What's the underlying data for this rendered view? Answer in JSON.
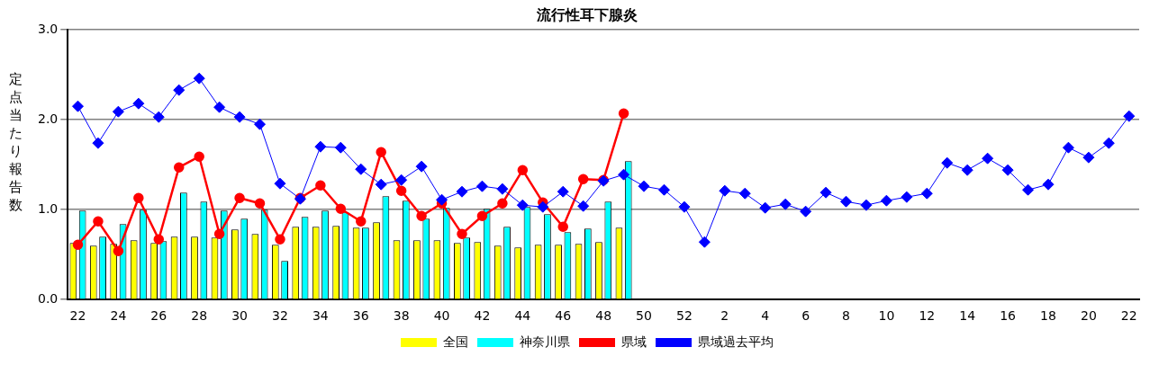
{
  "chart_data": {
    "type": "bar",
    "title": "流行性耳下腺炎",
    "ylabel": "定点当たり報告数",
    "categories": [
      "22",
      null,
      "24",
      null,
      "26",
      null,
      "28",
      null,
      "30",
      null,
      "32",
      null,
      "34",
      null,
      "36",
      null,
      "38",
      null,
      "40",
      null,
      "42",
      null,
      "44",
      null,
      "46",
      null,
      "48",
      null,
      "50",
      null,
      "52",
      null,
      "2",
      null,
      "4",
      null,
      "6",
      null,
      "8",
      null,
      "10",
      null,
      "12",
      null,
      "14",
      null,
      "16",
      null,
      "18",
      null,
      "20",
      null,
      "22"
    ],
    "series": [
      {
        "name": "全国",
        "color": "#ffff00",
        "values": [
          0.63,
          0.6,
          0.62,
          0.66,
          0.63,
          0.7,
          0.7,
          0.69,
          0.78,
          0.73,
          0.61,
          0.81,
          0.81,
          0.82,
          0.8,
          0.86,
          0.66,
          0.66,
          0.66,
          0.63,
          0.64,
          0.6,
          0.58,
          0.61,
          0.61,
          0.62,
          0.64,
          0.8,
          null,
          null,
          null,
          null,
          null,
          null,
          null,
          null,
          null,
          null,
          null,
          null,
          null,
          null,
          null,
          null,
          null,
          null,
          null,
          null,
          null,
          null,
          null,
          null,
          null
        ]
      },
      {
        "name": "神奈川県",
        "color": "#00ffff",
        "values": [
          0.99,
          0.7,
          0.84,
          1.0,
          0.65,
          1.19,
          1.09,
          0.99,
          0.9,
          1.0,
          0.43,
          0.92,
          0.99,
          0.97,
          0.8,
          1.15,
          1.1,
          0.9,
          1.02,
          0.69,
          1.01,
          0.81,
          1.03,
          0.95,
          0.75,
          0.79,
          1.09,
          1.54,
          null,
          null,
          null,
          null,
          null,
          null,
          null,
          null,
          null,
          null,
          null,
          null,
          null,
          null,
          null,
          null,
          null,
          null,
          null,
          null,
          null,
          null,
          null,
          null,
          null
        ]
      },
      {
        "name": "県域",
        "type": "line",
        "color": "#ff0000",
        "marker": "circle",
        "values": [
          0.61,
          0.87,
          0.54,
          1.13,
          0.67,
          1.47,
          1.59,
          0.73,
          1.13,
          1.07,
          0.67,
          1.13,
          1.27,
          1.01,
          0.87,
          1.64,
          1.21,
          0.93,
          1.07,
          0.73,
          0.93,
          1.07,
          1.44,
          1.08,
          0.81,
          1.34,
          1.33,
          2.07,
          null,
          null,
          null,
          null,
          null,
          null,
          null,
          null,
          null,
          null,
          null,
          null,
          null,
          null,
          null,
          null,
          null,
          null,
          null,
          null,
          null,
          null,
          null,
          null,
          null
        ]
      },
      {
        "name": "県域過去平均",
        "type": "line",
        "color": "#0000ff",
        "marker": "diamond",
        "values": [
          2.15,
          1.74,
          2.09,
          2.18,
          2.03,
          2.33,
          2.46,
          2.14,
          2.03,
          1.95,
          1.29,
          1.12,
          1.7,
          1.69,
          1.45,
          1.28,
          1.33,
          1.48,
          1.11,
          1.2,
          1.26,
          1.23,
          1.05,
          1.03,
          1.2,
          1.04,
          1.32,
          1.39,
          1.26,
          1.22,
          1.03,
          0.64,
          1.21,
          1.18,
          1.02,
          1.06,
          0.98,
          1.19,
          1.09,
          1.05,
          1.1,
          1.14,
          1.18,
          1.52,
          1.44,
          1.57,
          1.44,
          1.22,
          1.28,
          1.69,
          1.58,
          1.74,
          2.04
        ]
      }
    ],
    "ylim": [
      0,
      3
    ],
    "yticks": [
      {
        "value": 0,
        "label": "0.0"
      },
      {
        "value": 1,
        "label": "1.0"
      },
      {
        "value": 2,
        "label": "2.0"
      },
      {
        "value": 3,
        "label": "3.0"
      }
    ],
    "grid": "y",
    "legend": "bottom"
  }
}
